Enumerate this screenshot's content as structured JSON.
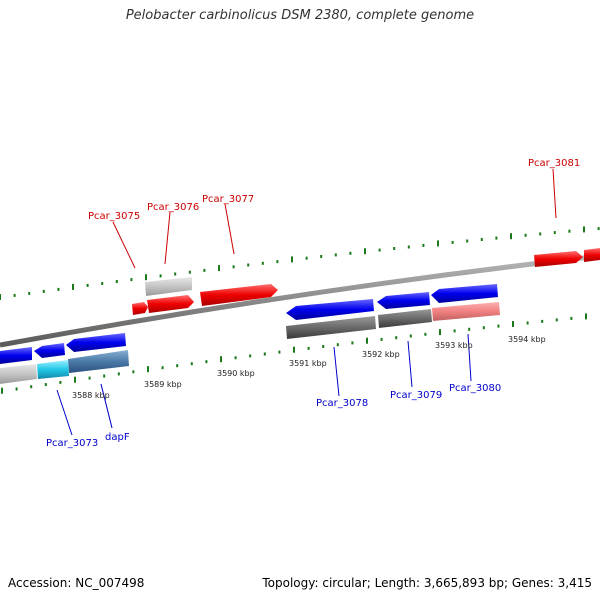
{
  "title": "Pelobacter carbinolicus DSM 2380, complete genome",
  "footer": {
    "accession": "Accession: NC_007498",
    "summary": "Topology: circular; Length: 3,665,893 bp; Genes: 3,415"
  },
  "colors": {
    "forward_label": "#cc0000",
    "reverse_label": "#0000cc",
    "forward_gene": "#ff0000",
    "reverse_gene": "#0000ee",
    "tick": "#1a7a1a",
    "backbone": "#8a8a8a"
  },
  "gene_labels": [
    {
      "id": "Pcar_3075",
      "strand": "forward"
    },
    {
      "id": "Pcar_3076",
      "strand": "forward"
    },
    {
      "id": "Pcar_3077",
      "strand": "forward"
    },
    {
      "id": "Pcar_3081",
      "strand": "forward"
    },
    {
      "id": "Pcar_3073",
      "strand": "reverse"
    },
    {
      "id": "dapF",
      "strand": "reverse"
    },
    {
      "id": "Pcar_3078",
      "strand": "reverse"
    },
    {
      "id": "Pcar_3079",
      "strand": "reverse"
    },
    {
      "id": "Pcar_3080",
      "strand": "reverse"
    }
  ],
  "scale_labels": [
    "3588 kbp",
    "3589 kbp",
    "3590 kbp",
    "3591 kbp",
    "3592 kbp",
    "3593 kbp",
    "3594 kbp"
  ]
}
